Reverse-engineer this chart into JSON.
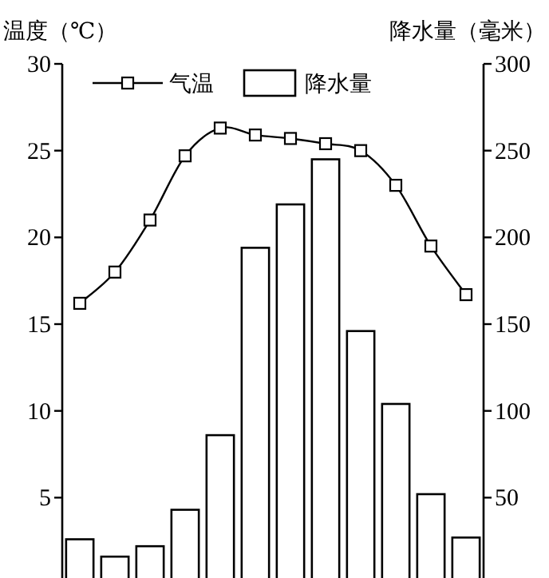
{
  "chart_data": {
    "type": "bar",
    "ylabel": "温度（℃）",
    "y2label": "降水量（毫米）",
    "categories": [
      null,
      null,
      null,
      null,
      null,
      null,
      null,
      null,
      null,
      null,
      null,
      null
    ],
    "series": [
      {
        "name": "气温",
        "type": "line",
        "axis": "y",
        "color": "#000000",
        "marker": "square",
        "values": [
          16.2,
          18.0,
          21.0,
          24.7,
          26.3,
          25.9,
          25.7,
          25.4,
          25.0,
          23.0,
          19.5,
          16.7
        ]
      },
      {
        "name": "降水量",
        "axis": "y2",
        "color": "#ffffff",
        "values": [
          26,
          16,
          22,
          43,
          86,
          194,
          219,
          245,
          146,
          104,
          52,
          27
        ]
      }
    ],
    "ylim": [
      0,
      30
    ],
    "yticks": [
      5,
      10,
      15,
      20,
      25,
      30
    ],
    "y2lim": [
      0,
      300
    ],
    "y2ticks": [
      50,
      100,
      150,
      200,
      250,
      300
    ],
    "legend": "top",
    "grid": false
  }
}
